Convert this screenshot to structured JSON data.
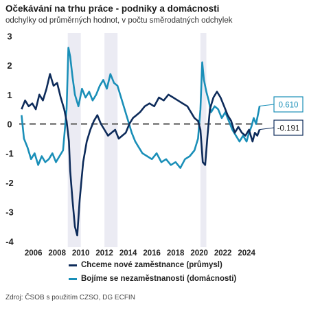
{
  "title": "Očekávání na trhu práce - podniky a domácnosti",
  "subtitle": "odchylky od průměrných hodnot, v počtu směrodatných odchylek",
  "source": "Zdroj: ČSOB s použitím CZSO, DG ECFIN",
  "chart_data": {
    "type": "line",
    "xlim": [
      2004.8,
      2025.5
    ],
    "ylim": [
      -4.2,
      3.1
    ],
    "yticks": [
      3,
      2,
      1,
      0,
      -1,
      -2,
      -3,
      -4
    ],
    "xticks": [
      2006,
      2008,
      2010,
      2012,
      2014,
      2016,
      2018,
      2020,
      2022,
      2024
    ],
    "zero_line": {
      "y": 0,
      "style": "dashed",
      "color": "#777777"
    },
    "shaded_ranges": [
      [
        2008.9,
        2010.0
      ],
      [
        2012.0,
        2013.1
      ],
      [
        2020.1,
        2020.6
      ]
    ],
    "series": [
      {
        "name": "Chceme nové zaměstnance (průmysl)",
        "color": "#0d2b5a",
        "end_label": "-0.191",
        "x": [
          2005.0,
          2005.3,
          2005.6,
          2005.9,
          2006.2,
          2006.5,
          2006.8,
          2007.1,
          2007.4,
          2007.7,
          2008.0,
          2008.3,
          2008.6,
          2008.8,
          2009.0,
          2009.1,
          2009.3,
          2009.5,
          2009.7,
          2009.9,
          2010.2,
          2010.5,
          2010.8,
          2011.1,
          2011.4,
          2011.7,
          2012.0,
          2012.3,
          2012.6,
          2012.9,
          2013.2,
          2013.5,
          2013.8,
          2014.1,
          2014.4,
          2014.7,
          2015.0,
          2015.4,
          2015.8,
          2016.2,
          2016.6,
          2017.0,
          2017.4,
          2017.8,
          2018.2,
          2018.6,
          2019.0,
          2019.3,
          2019.6,
          2019.9,
          2020.1,
          2020.3,
          2020.5,
          2020.7,
          2020.9,
          2021.2,
          2021.5,
          2021.8,
          2022.1,
          2022.4,
          2022.7,
          2023.0,
          2023.3,
          2023.6,
          2023.9,
          2024.2,
          2024.5,
          2024.7,
          2024.9,
          2025.1
        ],
        "values": [
          0.5,
          0.8,
          0.6,
          0.7,
          0.5,
          1.0,
          0.8,
          1.2,
          1.7,
          1.3,
          1.4,
          0.9,
          0.5,
          0.1,
          -0.6,
          -1.6,
          -2.6,
          -3.5,
          -3.8,
          -2.6,
          -1.3,
          -0.6,
          -0.2,
          0.1,
          0.3,
          0.0,
          -0.2,
          -0.4,
          -0.3,
          -0.2,
          -0.5,
          -0.4,
          -0.3,
          0.0,
          0.2,
          0.3,
          0.4,
          0.6,
          0.7,
          0.6,
          0.9,
          0.8,
          1.0,
          0.9,
          0.8,
          0.7,
          0.6,
          0.4,
          0.2,
          0.1,
          -0.2,
          -1.3,
          -1.4,
          -0.4,
          0.5,
          0.9,
          1.1,
          0.9,
          0.6,
          0.3,
          0.1,
          -0.3,
          -0.1,
          -0.3,
          -0.4,
          -0.2,
          -0.6,
          -0.3,
          -0.4,
          -0.19
        ]
      },
      {
        "name": "Bojíme se nezaměstnanosti (domácnosti)",
        "color": "#1a8fb8",
        "end_label": "0.610",
        "x": [
          2005.0,
          2005.2,
          2005.5,
          2005.8,
          2006.1,
          2006.4,
          2006.7,
          2007.0,
          2007.3,
          2007.6,
          2007.9,
          2008.2,
          2008.5,
          2008.8,
          2008.95,
          2009.1,
          2009.3,
          2009.5,
          2009.8,
          2010.1,
          2010.4,
          2010.7,
          2011.0,
          2011.3,
          2011.6,
          2011.9,
          2012.2,
          2012.5,
          2012.8,
          2013.1,
          2013.4,
          2013.7,
          2014.0,
          2014.3,
          2014.6,
          2014.9,
          2015.2,
          2015.6,
          2016.0,
          2016.4,
          2016.8,
          2017.2,
          2017.6,
          2018.0,
          2018.4,
          2018.8,
          2019.2,
          2019.6,
          2019.9,
          2020.1,
          2020.25,
          2020.4,
          2020.6,
          2020.8,
          2021.0,
          2021.3,
          2021.6,
          2021.9,
          2022.2,
          2022.5,
          2022.8,
          2023.1,
          2023.4,
          2023.7,
          2024.0,
          2024.2,
          2024.4,
          2024.6,
          2024.8,
          2025.0,
          2025.1
        ],
        "values": [
          0.3,
          -0.5,
          -0.8,
          -1.2,
          -1.0,
          -1.4,
          -1.1,
          -1.3,
          -1.2,
          -1.0,
          -1.3,
          -1.1,
          -0.9,
          0.5,
          2.6,
          2.3,
          1.6,
          1.0,
          0.6,
          1.2,
          0.9,
          1.1,
          0.8,
          1.0,
          1.3,
          1.5,
          1.2,
          1.7,
          1.4,
          1.3,
          0.9,
          0.5,
          0.1,
          -0.3,
          -0.6,
          -0.8,
          -1.0,
          -1.1,
          -1.2,
          -1.0,
          -1.3,
          -1.2,
          -1.4,
          -1.3,
          -1.5,
          -1.2,
          -1.1,
          -0.9,
          -0.5,
          0.5,
          2.1,
          1.5,
          1.1,
          0.8,
          0.4,
          0.6,
          0.5,
          0.2,
          0.4,
          0.1,
          -0.2,
          -0.4,
          -0.6,
          -0.4,
          -0.6,
          -0.3,
          -0.1,
          0.2,
          0.0,
          0.4,
          0.61
        ]
      }
    ]
  }
}
